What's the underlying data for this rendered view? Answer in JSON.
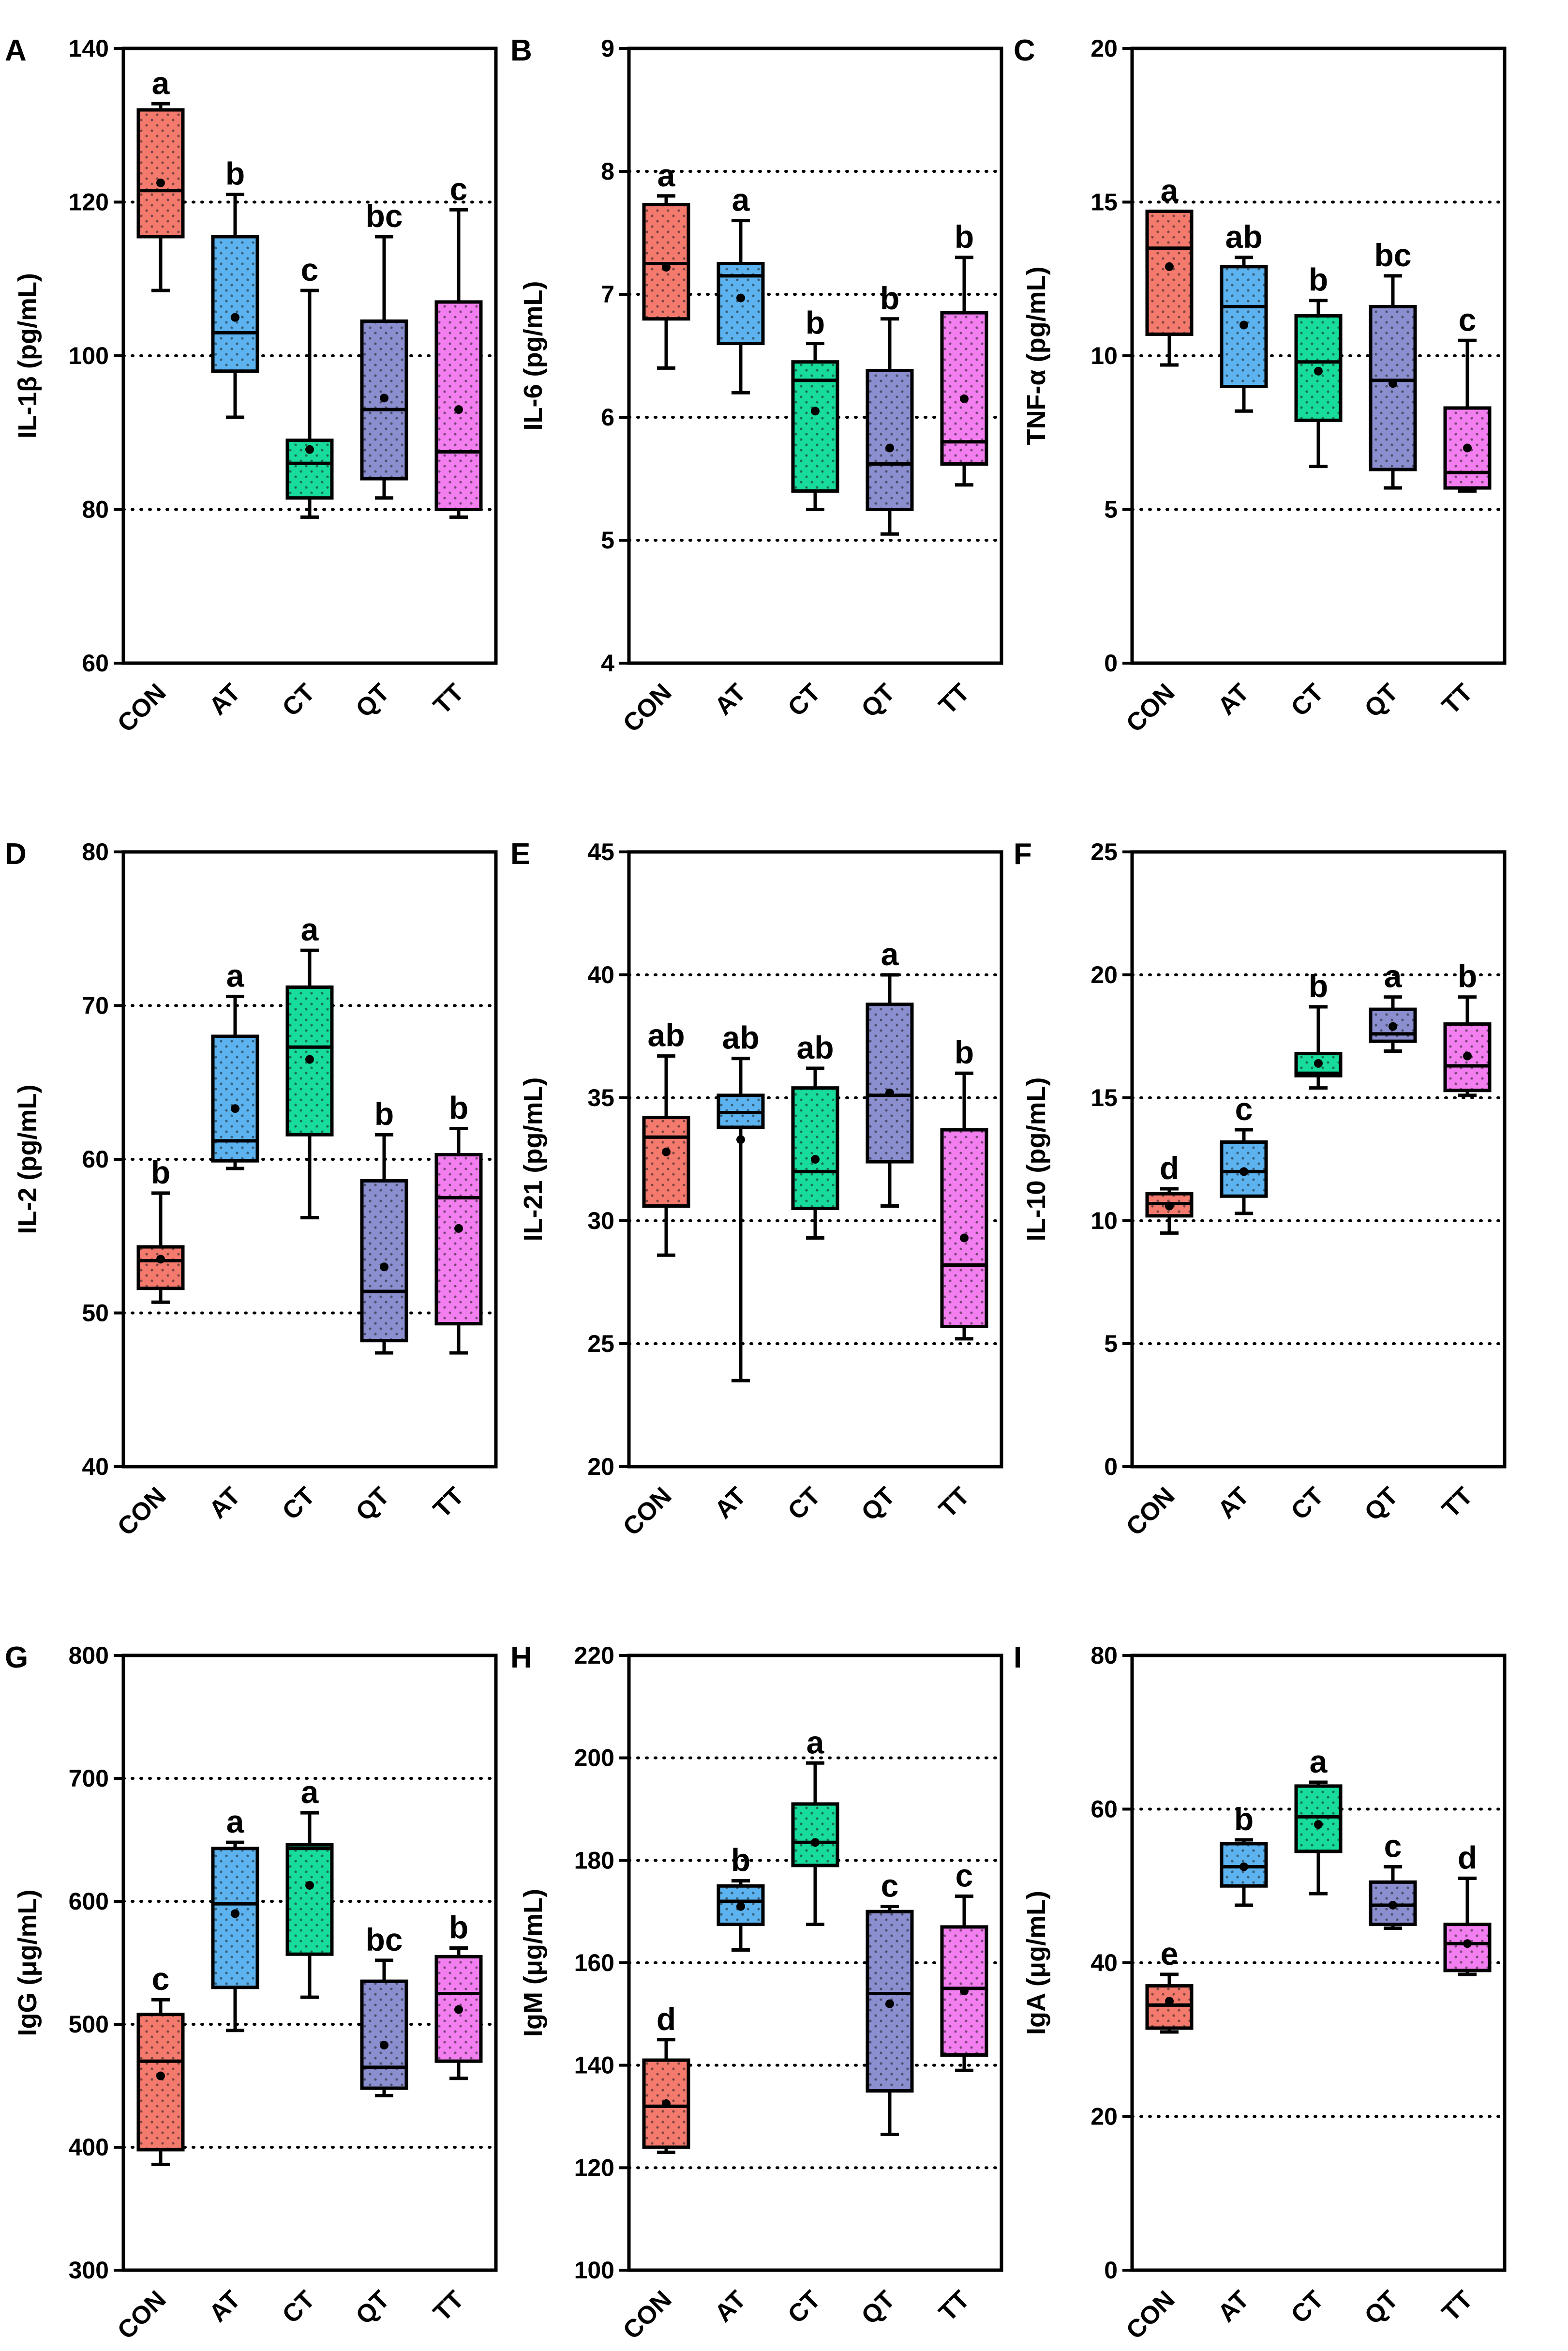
{
  "figure": {
    "categories": [
      "CON",
      "AT",
      "CT",
      "QT",
      "TT"
    ],
    "colors": [
      "#f47a6e",
      "#5cb3ef",
      "#17dc9c",
      "#8b8fcf",
      "#f37ef0"
    ]
  },
  "chart_data": [
    {
      "type": "box",
      "panel": "A",
      "ylabel": "IL-1β (pg/mL)",
      "ylim": [
        60,
        140
      ],
      "yticks": [
        60,
        80,
        100,
        120,
        140
      ],
      "gridlines": [
        80,
        100,
        120
      ],
      "categories": [
        "CON",
        "AT",
        "CT",
        "QT",
        "TT"
      ],
      "boxes": [
        {
          "min": 108.5,
          "q1": 115.5,
          "median": 121.5,
          "q3": 132,
          "max": 132.8,
          "mean": 122.5,
          "letter": "a"
        },
        {
          "min": 92,
          "q1": 98,
          "median": 103,
          "q3": 115.5,
          "max": 121,
          "mean": 105,
          "letter": "b"
        },
        {
          "min": 79,
          "q1": 81.5,
          "median": 86,
          "q3": 89,
          "max": 108.5,
          "mean": 87.8,
          "letter": "c"
        },
        {
          "min": 81.5,
          "q1": 84,
          "median": 93,
          "q3": 104.5,
          "max": 115.5,
          "mean": 94.5,
          "letter": "bc"
        },
        {
          "min": 79,
          "q1": 80,
          "median": 87.5,
          "q3": 107,
          "max": 119,
          "mean": 93,
          "letter": "c"
        }
      ]
    },
    {
      "type": "box",
      "panel": "B",
      "ylabel": "IL-6 (pg/mL)",
      "ylim": [
        4,
        9
      ],
      "yticks": [
        4,
        5,
        6,
        7,
        8,
        9
      ],
      "gridlines": [
        5,
        6,
        7,
        8
      ],
      "categories": [
        "CON",
        "AT",
        "CT",
        "QT",
        "TT"
      ],
      "boxes": [
        {
          "min": 6.4,
          "q1": 6.8,
          "median": 7.25,
          "q3": 7.73,
          "max": 7.8,
          "mean": 7.22,
          "letter": "a"
        },
        {
          "min": 6.2,
          "q1": 6.6,
          "median": 7.15,
          "q3": 7.25,
          "max": 7.6,
          "mean": 6.97,
          "letter": "a"
        },
        {
          "min": 5.25,
          "q1": 5.4,
          "median": 6.3,
          "q3": 6.45,
          "max": 6.6,
          "mean": 6.05,
          "letter": "b"
        },
        {
          "min": 5.05,
          "q1": 5.25,
          "median": 5.62,
          "q3": 6.38,
          "max": 6.8,
          "mean": 5.75,
          "letter": "b"
        },
        {
          "min": 5.45,
          "q1": 5.62,
          "median": 5.8,
          "q3": 6.85,
          "max": 7.3,
          "mean": 6.15,
          "letter": "b"
        }
      ]
    },
    {
      "type": "box",
      "panel": "C",
      "ylabel": "TNF-α (pg/mL)",
      "ylim": [
        0,
        20
      ],
      "yticks": [
        0,
        5,
        10,
        15,
        20
      ],
      "gridlines": [
        5,
        10,
        15
      ],
      "categories": [
        "CON",
        "AT",
        "CT",
        "QT",
        "TT"
      ],
      "boxes": [
        {
          "min": 9.7,
          "q1": 10.7,
          "median": 13.5,
          "q3": 14.7,
          "max": 14.7,
          "mean": 12.9,
          "letter": "a"
        },
        {
          "min": 8.2,
          "q1": 9,
          "median": 11.6,
          "q3": 12.9,
          "max": 13.2,
          "mean": 11,
          "letter": "ab"
        },
        {
          "min": 6.4,
          "q1": 7.9,
          "median": 9.8,
          "q3": 11.3,
          "max": 11.8,
          "mean": 9.5,
          "letter": "b"
        },
        {
          "min": 5.7,
          "q1": 6.3,
          "median": 9.2,
          "q3": 11.6,
          "max": 12.6,
          "mean": 9.1,
          "letter": "bc"
        },
        {
          "min": 5.6,
          "q1": 5.7,
          "median": 6.2,
          "q3": 8.3,
          "max": 10.5,
          "mean": 7,
          "letter": "c"
        }
      ]
    },
    {
      "type": "box",
      "panel": "D",
      "ylabel": "IL-2 (pg/mL)",
      "ylim": [
        40,
        80
      ],
      "yticks": [
        40,
        50,
        60,
        70,
        80
      ],
      "gridlines": [
        50,
        60,
        70
      ],
      "categories": [
        "CON",
        "AT",
        "CT",
        "QT",
        "TT"
      ],
      "boxes": [
        {
          "min": 50.7,
          "q1": 51.6,
          "median": 53.4,
          "q3": 54.3,
          "max": 57.8,
          "mean": 53.5,
          "letter": "b"
        },
        {
          "min": 59.4,
          "q1": 59.9,
          "median": 61.2,
          "q3": 68,
          "max": 70.6,
          "mean": 63.3,
          "letter": "a"
        },
        {
          "min": 56.2,
          "q1": 61.6,
          "median": 67.3,
          "q3": 71.2,
          "max": 73.6,
          "mean": 66.5,
          "letter": "a"
        },
        {
          "min": 47.4,
          "q1": 48.2,
          "median": 51.4,
          "q3": 58.6,
          "max": 61.6,
          "mean": 53,
          "letter": "b"
        },
        {
          "min": 47.4,
          "q1": 49.3,
          "median": 57.5,
          "q3": 60.3,
          "max": 62,
          "mean": 55.5,
          "letter": "b"
        }
      ]
    },
    {
      "type": "box",
      "panel": "E",
      "ylabel": "IL-21 (pg/mL)",
      "ylim": [
        20,
        45
      ],
      "yticks": [
        20,
        25,
        30,
        35,
        40,
        45
      ],
      "gridlines": [
        25,
        30,
        35,
        40
      ],
      "categories": [
        "CON",
        "AT",
        "CT",
        "QT",
        "TT"
      ],
      "boxes": [
        {
          "min": 28.6,
          "q1": 30.6,
          "median": 33.4,
          "q3": 34.2,
          "max": 36.7,
          "mean": 32.8,
          "letter": "ab"
        },
        {
          "min": 23.5,
          "q1": 33.8,
          "median": 34.4,
          "q3": 35.1,
          "max": 36.6,
          "mean": 33.3,
          "letter": "ab"
        },
        {
          "min": 29.3,
          "q1": 30.5,
          "median": 32,
          "q3": 35.4,
          "max": 36.2,
          "mean": 32.5,
          "letter": "ab"
        },
        {
          "min": 30.6,
          "q1": 32.4,
          "median": 35.1,
          "q3": 38.8,
          "max": 40,
          "mean": 35.2,
          "letter": "a"
        },
        {
          "min": 25.2,
          "q1": 25.7,
          "median": 28.2,
          "q3": 33.7,
          "max": 36,
          "mean": 29.3,
          "letter": "b"
        }
      ]
    },
    {
      "type": "box",
      "panel": "F",
      "ylabel": "IL-10 (pg/mL)",
      "ylim": [
        0,
        25
      ],
      "yticks": [
        0,
        5,
        10,
        15,
        20,
        25
      ],
      "gridlines": [
        5,
        10,
        15,
        20
      ],
      "categories": [
        "CON",
        "AT",
        "CT",
        "QT",
        "TT"
      ],
      "boxes": [
        {
          "min": 9.5,
          "q1": 10.2,
          "median": 10.7,
          "q3": 11.1,
          "max": 11.3,
          "mean": 10.6,
          "letter": "d"
        },
        {
          "min": 10.3,
          "q1": 11,
          "median": 12,
          "q3": 13.2,
          "max": 13.7,
          "mean": 12,
          "letter": "c"
        },
        {
          "min": 15.4,
          "q1": 15.9,
          "median": 16,
          "q3": 16.8,
          "max": 18.7,
          "mean": 16.4,
          "letter": "b"
        },
        {
          "min": 16.9,
          "q1": 17.3,
          "median": 17.6,
          "q3": 18.6,
          "max": 19.1,
          "mean": 17.9,
          "letter": "a"
        },
        {
          "min": 15.1,
          "q1": 15.3,
          "median": 16.3,
          "q3": 18,
          "max": 19.1,
          "mean": 16.7,
          "letter": "b"
        }
      ]
    },
    {
      "type": "box",
      "panel": "G",
      "ylabel": "IgG (μg/mL)",
      "ylim": [
        300,
        800
      ],
      "yticks": [
        300,
        400,
        500,
        600,
        700,
        800
      ],
      "gridlines": [
        400,
        500,
        600,
        700
      ],
      "categories": [
        "CON",
        "AT",
        "CT",
        "QT",
        "TT"
      ],
      "boxes": [
        {
          "min": 386,
          "q1": 398,
          "median": 470,
          "q3": 508,
          "max": 520,
          "mean": 458,
          "letter": "c"
        },
        {
          "min": 495,
          "q1": 530,
          "median": 598,
          "q3": 643,
          "max": 648,
          "mean": 590,
          "letter": "a"
        },
        {
          "min": 522,
          "q1": 557,
          "median": 643,
          "q3": 646,
          "max": 672,
          "mean": 613,
          "letter": "a"
        },
        {
          "min": 442,
          "q1": 448,
          "median": 465,
          "q3": 535,
          "max": 552,
          "mean": 483,
          "letter": "bc"
        },
        {
          "min": 456,
          "q1": 470,
          "median": 525,
          "q3": 555,
          "max": 562,
          "mean": 512,
          "letter": "b"
        }
      ]
    },
    {
      "type": "box",
      "panel": "H",
      "ylabel": "IgM (μg/mL)",
      "ylim": [
        100,
        220
      ],
      "yticks": [
        100,
        120,
        140,
        160,
        180,
        200,
        220
      ],
      "gridlines": [
        120,
        140,
        160,
        180,
        200
      ],
      "categories": [
        "CON",
        "AT",
        "CT",
        "QT",
        "TT"
      ],
      "boxes": [
        {
          "min": 123,
          "q1": 124,
          "median": 132,
          "q3": 141,
          "max": 145,
          "mean": 132.5,
          "letter": "d"
        },
        {
          "min": 162.5,
          "q1": 167.5,
          "median": 172,
          "q3": 175,
          "max": 176,
          "mean": 171,
          "letter": "b"
        },
        {
          "min": 167.5,
          "q1": 179,
          "median": 183.5,
          "q3": 191,
          "max": 199,
          "mean": 183.5,
          "letter": "a"
        },
        {
          "min": 126.5,
          "q1": 135,
          "median": 154,
          "q3": 170,
          "max": 171,
          "mean": 152,
          "letter": "c"
        },
        {
          "min": 139,
          "q1": 142,
          "median": 155,
          "q3": 167,
          "max": 173,
          "mean": 154.5,
          "letter": "c"
        }
      ]
    },
    {
      "type": "box",
      "panel": "I",
      "ylabel": "IgA (μg/mL)",
      "ylim": [
        0,
        80
      ],
      "yticks": [
        0,
        20,
        40,
        60,
        80
      ],
      "gridlines": [
        20,
        40,
        60
      ],
      "categories": [
        "CON",
        "AT",
        "CT",
        "QT",
        "TT"
      ],
      "boxes": [
        {
          "min": 31,
          "q1": 31.5,
          "median": 34.5,
          "q3": 37,
          "max": 38.5,
          "mean": 35,
          "letter": "e"
        },
        {
          "min": 47.5,
          "q1": 50,
          "median": 52.5,
          "q3": 55.5,
          "max": 56,
          "mean": 52.5,
          "letter": "b"
        },
        {
          "min": 49,
          "q1": 54.5,
          "median": 59,
          "q3": 63,
          "max": 63.5,
          "mean": 58,
          "letter": "a"
        },
        {
          "min": 44.5,
          "q1": 45,
          "median": 47.5,
          "q3": 50.5,
          "max": 52.5,
          "mean": 47.5,
          "letter": "c"
        },
        {
          "min": 38.5,
          "q1": 39,
          "median": 42.5,
          "q3": 45,
          "max": 51,
          "mean": 42.5,
          "letter": "d"
        }
      ]
    }
  ]
}
